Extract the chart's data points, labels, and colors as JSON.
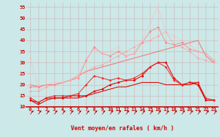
{
  "x": [
    0,
    1,
    2,
    3,
    4,
    5,
    6,
    7,
    8,
    9,
    10,
    11,
    12,
    13,
    14,
    15,
    16,
    17,
    18,
    19,
    20,
    21,
    22,
    23
  ],
  "series": [
    {
      "color": "#dd0000",
      "alpha": 1.0,
      "linewidth": 0.8,
      "marker": null,
      "y": [
        13,
        11,
        13,
        14,
        14,
        14,
        14,
        15,
        16,
        17,
        18,
        19,
        19,
        20,
        21,
        21,
        21,
        20,
        20,
        20,
        20,
        21,
        13,
        13
      ]
    },
    {
      "color": "#dd0000",
      "alpha": 1.0,
      "linewidth": 0.8,
      "marker": "D",
      "markersize": 1.5,
      "y": [
        13,
        12,
        14,
        14,
        14,
        15,
        15,
        15,
        17,
        18,
        20,
        21,
        22,
        22,
        24,
        28,
        30,
        30,
        23,
        20,
        21,
        20,
        13,
        13
      ]
    },
    {
      "color": "#ee2222",
      "alpha": 0.9,
      "linewidth": 0.8,
      "marker": "D",
      "markersize": 1.5,
      "y": [
        14,
        12,
        14,
        15,
        15,
        15,
        16,
        20,
        24,
        23,
        22,
        23,
        22,
        23,
        25,
        28,
        30,
        28,
        22,
        20,
        21,
        21,
        14,
        13
      ]
    },
    {
      "color": "#ff5555",
      "alpha": 0.75,
      "linewidth": 0.8,
      "marker": null,
      "y": [
        20,
        19,
        20,
        20,
        21,
        22,
        24,
        26,
        27,
        28,
        29,
        30,
        31,
        32,
        33,
        34,
        35,
        36,
        37,
        38,
        39,
        40,
        33,
        30
      ]
    },
    {
      "color": "#ff7777",
      "alpha": 0.65,
      "linewidth": 0.8,
      "marker": "D",
      "markersize": 1.5,
      "y": [
        19,
        19,
        20,
        20,
        21,
        22,
        23,
        31,
        37,
        34,
        33,
        35,
        33,
        34,
        39,
        44,
        46,
        39,
        38,
        39,
        36,
        35,
        34,
        31
      ]
    },
    {
      "color": "#ff9999",
      "alpha": 0.55,
      "linewidth": 0.8,
      "marker": "D",
      "markersize": 1.5,
      "y": [
        17,
        17,
        19,
        20,
        21,
        22,
        24,
        26,
        28,
        29,
        31,
        33,
        35,
        37,
        39,
        40,
        42,
        44,
        38,
        37,
        35,
        32,
        31,
        30
      ]
    },
    {
      "color": "#ffbbbb",
      "alpha": 0.5,
      "linewidth": 0.8,
      "marker": "D",
      "markersize": 1.5,
      "y": [
        32,
        18,
        20,
        21,
        21,
        22,
        24,
        32,
        36,
        34,
        35,
        37,
        33,
        34,
        40,
        48,
        55,
        44,
        42,
        40,
        38,
        35,
        34,
        31
      ]
    }
  ],
  "ylim": [
    10,
    57
  ],
  "xlim": [
    -0.5,
    23.5
  ],
  "yticks": [
    10,
    15,
    20,
    25,
    30,
    35,
    40,
    45,
    50,
    55
  ],
  "xticks": [
    0,
    1,
    2,
    3,
    4,
    5,
    6,
    7,
    8,
    9,
    10,
    11,
    12,
    13,
    14,
    15,
    16,
    17,
    18,
    19,
    20,
    21,
    22,
    23
  ],
  "xlabel": "Vent moyen/en rafales ( km/h )",
  "background_color": "#cce8e8",
  "grid_color": "#cc9999",
  "text_color": "#cc0000",
  "xlabel_fontsize": 6.0,
  "tick_fontsize": 5.0
}
